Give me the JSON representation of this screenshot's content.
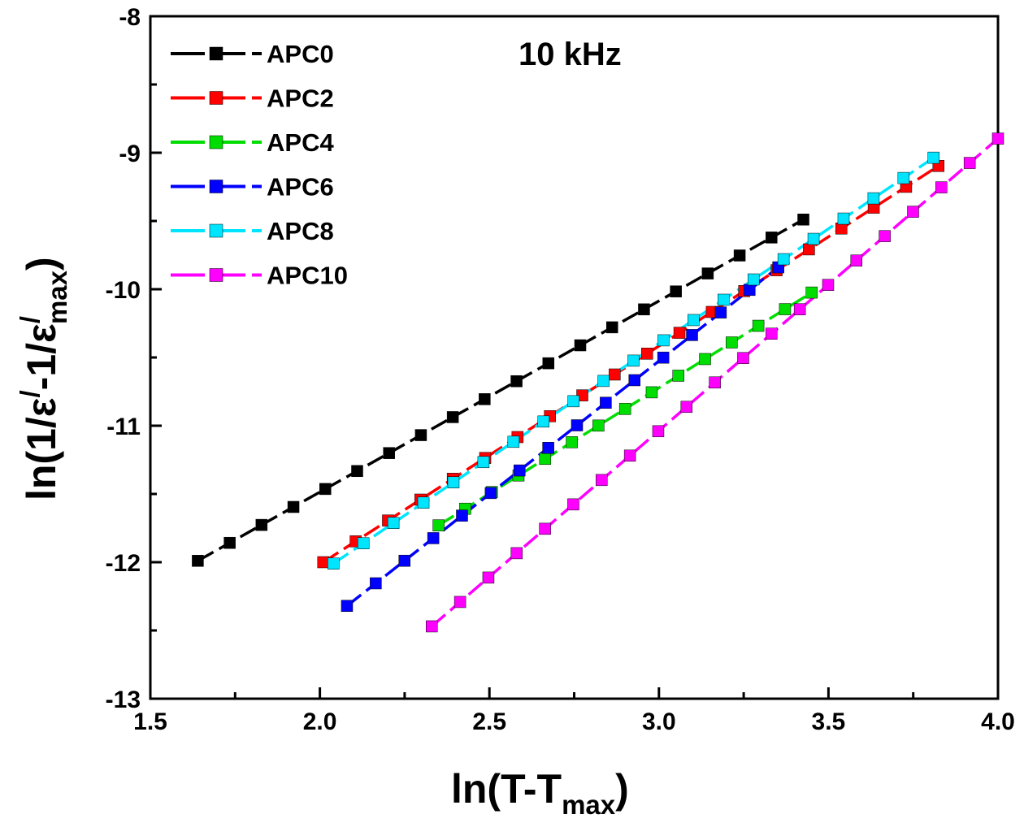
{
  "chart_data": {
    "type": "line",
    "annotation": "10 kHz",
    "xlabel": {
      "main": "ln(T-T",
      "sub": "max",
      "close": ")"
    },
    "ylabel": {
      "p1": "ln(1/ε",
      "sup1": "/",
      "p2": "-1/ε",
      "sup2": "/",
      "sub": "max",
      "close": ")"
    },
    "xlim": [
      1.5,
      4.0
    ],
    "ylim": [
      -13,
      -8
    ],
    "xticks": [
      1.5,
      2.0,
      2.5,
      3.0,
      3.5,
      4.0
    ],
    "xtick_labels": [
      "1.5",
      "2.0",
      "2.5",
      "3.0",
      "3.5",
      "4.0"
    ],
    "yticks": [
      -13,
      -12,
      -11,
      -10,
      -9,
      -8
    ],
    "ytick_labels": [
      "-13",
      "-12",
      "-11",
      "-10",
      "-9",
      "-8"
    ],
    "legend_position": "top-left",
    "series": [
      {
        "name": "APC0",
        "color": "#000000",
        "x0": 1.64,
        "dx": 0.094,
        "n": 20,
        "y0": -11.99,
        "slope": 1.4
      },
      {
        "name": "APC2",
        "color": "#ff0000",
        "x0": 2.01,
        "dx": 0.0955,
        "n": 20,
        "y0": -12.0,
        "slope": 1.6
      },
      {
        "name": "APC4",
        "color": "#00dd00",
        "x0": 2.35,
        "dx": 0.0786,
        "n": 15,
        "y0": -11.73,
        "slope": 1.55
      },
      {
        "name": "APC6",
        "color": "#0000ff",
        "x0": 2.08,
        "dx": 0.0848,
        "n": 16,
        "y0": -12.32,
        "slope": 1.95
      },
      {
        "name": "APC8",
        "color": "#00e5ff",
        "x0": 2.04,
        "dx": 0.0885,
        "n": 21,
        "y0": -12.01,
        "slope": 1.68
      },
      {
        "name": "APC10",
        "color": "#ff00ff",
        "x0": 2.33,
        "dx": 0.0835,
        "n": 21,
        "y0": -12.47,
        "slope": 2.14
      }
    ]
  }
}
